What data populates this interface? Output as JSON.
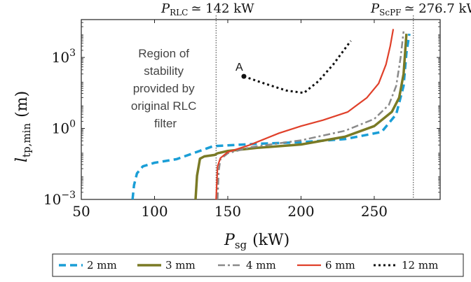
{
  "chart_data": {
    "type": "line",
    "xlabel_main": "P",
    "xlabel_sub": "sg",
    "xlabel_unit": "(kW)",
    "ylabel_main": "l",
    "ylabel_sub": "tp,min",
    "ylabel_unit": "(m)",
    "x_ticks": [
      "50",
      "100",
      "150",
      "200",
      "250"
    ],
    "y_ticks": [
      {
        "base": "10",
        "exp": "3",
        "value": 3
      },
      {
        "base": "10",
        "exp": "0",
        "value": 0
      },
      {
        "base": "10",
        "exp": "−3",
        "value": -3
      }
    ],
    "xlim": [
      50,
      295
    ],
    "ylim_log10": [
      -3,
      4.6
    ],
    "y_scale": "log",
    "vlines": [
      {
        "x": 142,
        "label_main": "P",
        "label_sub": "RLC",
        "label_value": "≃ 142 kW"
      },
      {
        "x": 276.7,
        "label_main": "P",
        "label_sub": "ScPF",
        "label_value": "≃ 276.7 kW"
      }
    ],
    "region_text": [
      "Region of",
      "stability",
      "provided by",
      "original RLC",
      "filter"
    ],
    "point_label": "A",
    "point": {
      "x": 161,
      "y_log10": 2.2
    },
    "series": [
      {
        "name": "2 mm",
        "color": "#1a9ed6",
        "dash": "10,6",
        "width": 3.5,
        "points": [
          [
            85,
            -3
          ],
          [
            86,
            -2.4
          ],
          [
            88,
            -1.9
          ],
          [
            92,
            -1.6
          ],
          [
            100,
            -1.45
          ],
          [
            115,
            -1.3
          ],
          [
            140,
            -0.75
          ],
          [
            170,
            -0.65
          ],
          [
            200,
            -0.58
          ],
          [
            230,
            -0.45
          ],
          [
            255,
            -0.15
          ],
          [
            265,
            0.6
          ],
          [
            270,
            1.8
          ],
          [
            272,
            3.2
          ],
          [
            274,
            4.0
          ]
        ]
      },
      {
        "name": "3 mm",
        "color": "#7a7a25",
        "dash": "",
        "width": 3.5,
        "points": [
          [
            128,
            -3
          ],
          [
            129,
            -2.0
          ],
          [
            131,
            -1.28
          ],
          [
            134,
            -1.18
          ],
          [
            141,
            -1.12
          ],
          [
            143,
            -1.05
          ],
          [
            150,
            -0.95
          ],
          [
            170,
            -0.82
          ],
          [
            200,
            -0.68
          ],
          [
            230,
            -0.35
          ],
          [
            250,
            0.1
          ],
          [
            262,
            0.7
          ],
          [
            267,
            1.3
          ],
          [
            270,
            2.3
          ],
          [
            272,
            4.0
          ]
        ]
      },
      {
        "name": "4 mm",
        "color": "#8a8a8a",
        "dash": "10,4,3,4",
        "width": 2.5,
        "points": [
          [
            143,
            -3
          ],
          [
            143.8,
            -1.8
          ],
          [
            145,
            -1.3
          ],
          [
            150,
            -1.05
          ],
          [
            165,
            -0.8
          ],
          [
            200,
            -0.5
          ],
          [
            230,
            -0.1
          ],
          [
            250,
            0.4
          ],
          [
            260,
            1.0
          ],
          [
            265,
            1.8
          ],
          [
            268,
            3.0
          ],
          [
            270,
            4.1
          ]
        ]
      },
      {
        "name": "6 mm",
        "color": "#e0402a",
        "dash": "",
        "width": 2.2,
        "points": [
          [
            142,
            -3
          ],
          [
            143,
            -1.6
          ],
          [
            145,
            -1.25
          ],
          [
            150,
            -1.0
          ],
          [
            165,
            -0.7
          ],
          [
            185,
            -0.2
          ],
          [
            200,
            0.1
          ],
          [
            215,
            0.35
          ],
          [
            232,
            0.7
          ],
          [
            245,
            1.3
          ],
          [
            253,
            1.9
          ],
          [
            258,
            2.7
          ],
          [
            261,
            3.5
          ],
          [
            263,
            4.2
          ]
        ]
      },
      {
        "name": "12 mm",
        "color": "#111111",
        "dash": "3,4",
        "width": 3.0,
        "points": [
          [
            161,
            2.2
          ],
          [
            175,
            1.9
          ],
          [
            190,
            1.6
          ],
          [
            202,
            1.5
          ],
          [
            212,
            2.0
          ],
          [
            222,
            2.7
          ],
          [
            234,
            3.7
          ]
        ]
      }
    ]
  }
}
